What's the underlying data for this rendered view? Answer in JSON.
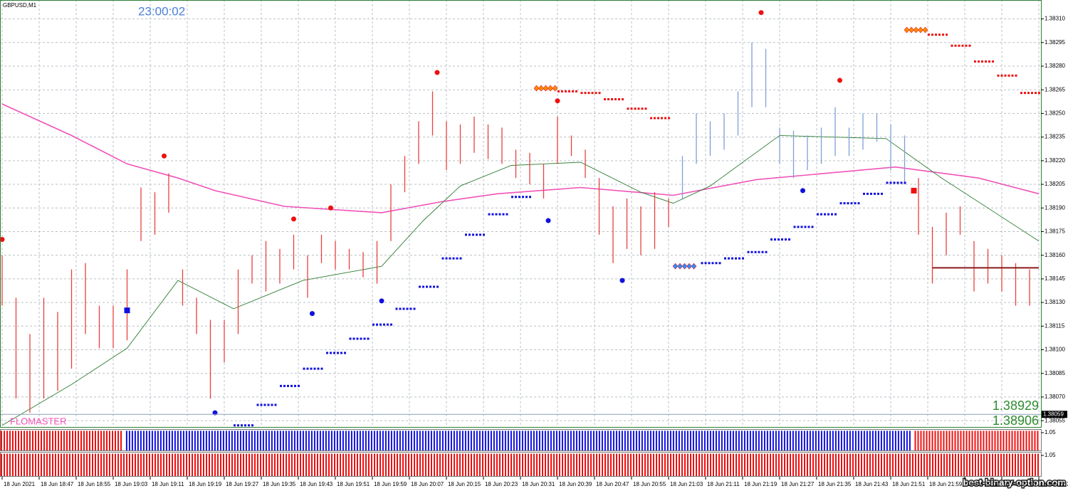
{
  "header": {
    "symbol": "GBPUSD,M1",
    "timer": "23:00:02",
    "indicator_name": "FLOMASTER",
    "price_upper": "1.38929",
    "price_lower": "1.38906",
    "watermark": "best-binary-option.com"
  },
  "chart_data": {
    "type": "bar",
    "xlim": [
      -0.46,
      224.46
    ],
    "ylim": [
      1.38051,
      1.38322
    ],
    "grid": true,
    "xticks": [
      {
        "value": 0,
        "label": "18 Jun 2021"
      },
      {
        "value": 8,
        "label": "18 Jun 18:47"
      },
      {
        "value": 16,
        "label": "18 Jun 18:55"
      },
      {
        "value": 24,
        "label": "18 Jun 19:03"
      },
      {
        "value": 32,
        "label": "18 Jun 19:11"
      },
      {
        "value": 40,
        "label": "18 Jun 19:19"
      },
      {
        "value": 48,
        "label": "18 Jun 19:27"
      },
      {
        "value": 56,
        "label": "18 Jun 19:35"
      },
      {
        "value": 64,
        "label": "18 Jun 19:43"
      },
      {
        "value": 72,
        "label": "18 Jun 19:51"
      },
      {
        "value": 80,
        "label": "18 Jun 19:59"
      },
      {
        "value": 88,
        "label": "18 Jun 20:07"
      },
      {
        "value": 96,
        "label": "18 Jun 20:15"
      },
      {
        "value": 104,
        "label": "18 Jun 20:23"
      },
      {
        "value": 112,
        "label": "18 Jun 20:31"
      },
      {
        "value": 120,
        "label": "18 Jun 20:39"
      },
      {
        "value": 128,
        "label": "18 Jun 20:47"
      },
      {
        "value": 136,
        "label": "18 Jun 20:55"
      },
      {
        "value": 144,
        "label": "18 Jun 21:03"
      },
      {
        "value": 152,
        "label": "18 Jun 21:11"
      },
      {
        "value": 160,
        "label": "18 Jun 21:19"
      },
      {
        "value": 168,
        "label": "18 Jun 21:27"
      },
      {
        "value": 176,
        "label": "18 Jun 21:35"
      },
      {
        "value": 184,
        "label": "18 Jun 21:43"
      },
      {
        "value": 192,
        "label": "18 Jun 21:51"
      },
      {
        "value": 200,
        "label": "18 Jun 21:59"
      },
      {
        "value": 208,
        "label": "18 Jun 22:07"
      },
      {
        "value": 216,
        "label": "18 Jun 22:15"
      },
      {
        "value": 224,
        "label": "18 Jun 22:2"
      }
    ],
    "yticks": [
      {
        "value": 1.3831,
        "label": "1.38310"
      },
      1.38295,
      {
        "value": 1.3828,
        "label": "1.38280"
      },
      1.38265,
      {
        "value": 1.3825,
        "label": "1.38250"
      },
      1.38235,
      {
        "value": 1.3822,
        "label": "1.38220"
      },
      1.38205,
      {
        "value": 1.3819,
        "label": "1.38190"
      },
      1.38175,
      {
        "value": 1.3816,
        "label": "1.38160"
      },
      1.38145,
      {
        "value": 1.3813,
        "label": "1.38130"
      },
      1.38115,
      {
        "value": 1.381,
        "label": "1.38100"
      },
      1.38085,
      {
        "value": 1.3807,
        "label": "1.38070"
      },
      1.38055
    ],
    "current_price": 1.38059,
    "bars": [
      {
        "color": "#e8413f",
        "x": [
          0,
          3,
          6,
          9,
          12,
          15,
          18,
          21,
          24,
          27,
          30,
          33,
          36,
          39,
          42,
          45,
          48,
          51,
          54,
          57,
          60,
          63,
          66,
          69,
          72,
          75,
          78,
          81,
          84,
          87,
          90,
          93,
          96,
          99,
          102,
          105,
          108,
          111,
          114,
          117,
          120,
          123,
          126,
          129,
          132,
          135,
          138,
          141,
          144
        ],
        "high": [
          1.3816,
          1.38133,
          1.3811,
          1.38133,
          1.38124,
          1.38151,
          1.38155,
          1.38128,
          1.38128,
          1.38151,
          1.38203,
          1.382,
          1.38212,
          1.38151,
          1.38133,
          1.38119,
          1.38119,
          1.38151,
          1.3816,
          1.38169,
          1.38164,
          1.38173,
          1.3816,
          1.38173,
          1.38169,
          1.38164,
          1.38162,
          1.38169,
          1.38205,
          1.38223,
          1.38245,
          1.38264,
          1.38245,
          1.38243,
          1.38248,
          1.38243,
          1.38241,
          1.38227,
          1.38225,
          1.38218,
          1.38248,
          1.38236,
          1.38227,
          1.38209,
          1.38191,
          1.38196,
          1.38191,
          1.382,
          1.38196
        ],
        "low": [
          1.38128,
          1.38069,
          1.3806,
          1.38069,
          1.38074,
          1.38088,
          1.3811,
          1.38101,
          1.38101,
          1.38106,
          1.38169,
          1.38173,
          1.38187,
          1.38128,
          1.3811,
          1.38069,
          1.38092,
          1.3811,
          1.38142,
          1.38137,
          1.38142,
          1.38151,
          1.38133,
          1.38155,
          1.38151,
          1.38151,
          1.38146,
          1.38142,
          1.38169,
          1.382,
          1.38218,
          1.38236,
          1.38214,
          1.38218,
          1.38225,
          1.38221,
          1.38218,
          1.38209,
          1.38205,
          1.38196,
          1.38218,
          1.38223,
          1.38209,
          1.38173,
          1.38155,
          1.38164,
          1.3816,
          1.38164,
          1.38178
        ]
      },
      {
        "color": "#7f9fd8",
        "x": [
          147,
          150,
          153,
          156,
          159,
          162,
          165,
          168,
          171,
          174,
          177,
          180,
          183,
          186,
          189,
          192,
          195
        ],
        "high": [
          1.38223,
          1.3825,
          1.38245,
          1.3825,
          1.38264,
          1.38295,
          1.38291,
          1.38241,
          1.38239,
          1.38236,
          1.38241,
          1.38254,
          1.38241,
          1.3825,
          1.3825,
          1.38243,
          1.38236
        ],
        "low": [
          1.38196,
          1.38218,
          1.38223,
          1.38227,
          1.38236,
          1.38254,
          1.38254,
          1.38218,
          1.38209,
          1.38214,
          1.38218,
          1.38223,
          1.38223,
          1.38227,
          1.38232,
          1.38214,
          1.38205
        ]
      },
      {
        "color": "#e8413f",
        "x": [
          198,
          201,
          204,
          207,
          210,
          213,
          216,
          219,
          222
        ],
        "high": [
          1.38209,
          1.38178,
          1.38187,
          1.38191,
          1.38169,
          1.38164,
          1.3816,
          1.38155,
          1.38151
        ],
        "low": [
          1.38173,
          1.38142,
          1.3816,
          1.38173,
          1.38137,
          1.38142,
          1.38137,
          1.38128,
          1.38128
        ]
      }
    ],
    "lines": [
      {
        "color": "#f052b8",
        "x": [
          0,
          15,
          27,
          38,
          46,
          61,
          82,
          95,
          107,
          125,
          145,
          163,
          193,
          211,
          224
        ],
        "values": [
          1.38256,
          1.38236,
          1.38218,
          1.38209,
          1.38201,
          1.38191,
          1.38187,
          1.38194,
          1.38199,
          1.38203,
          1.38198,
          1.38208,
          1.38216,
          1.38209,
          1.38199
        ]
      },
      {
        "color": "#2e7d32",
        "x": [
          0,
          15,
          27,
          38,
          50,
          65,
          82,
          91,
          99,
          110,
          125,
          138,
          145,
          153,
          168,
          191,
          203,
          224
        ],
        "values": [
          1.38052,
          1.38078,
          1.38101,
          1.38144,
          1.38126,
          1.38144,
          1.38153,
          1.38182,
          1.38204,
          1.38217,
          1.38219,
          1.382,
          1.38193,
          1.38204,
          1.38236,
          1.38234,
          1.38209,
          1.38169
        ]
      }
    ],
    "steps": [
      {
        "color": "#1010e0",
        "x": [
          50,
          55,
          60,
          65,
          70,
          75,
          80,
          85,
          90,
          95,
          100,
          105,
          110,
          151,
          156,
          161,
          166,
          171,
          176,
          181,
          186,
          191
        ],
        "values": [
          1.38052,
          1.38065,
          1.38077,
          1.38088,
          1.38098,
          1.38107,
          1.38116,
          1.38126,
          1.3814,
          1.38158,
          1.38173,
          1.38186,
          1.38197,
          1.38155,
          1.38158,
          1.38162,
          1.3817,
          1.38178,
          1.38186,
          1.38193,
          1.38199,
          1.38206
        ]
      },
      {
        "color": "#ee1010",
        "x": [
          120,
          125,
          130,
          135,
          140,
          200,
          205,
          210,
          215,
          220
        ],
        "values": [
          1.38264,
          1.38263,
          1.38259,
          1.38253,
          1.38247,
          1.383,
          1.38293,
          1.38283,
          1.38274,
          1.38263
        ]
      }
    ],
    "diamonds": [
      {
        "color": "#ff8a00",
        "x": [
          115,
          195
        ],
        "values": [
          1.38266,
          1.38303
        ]
      },
      {
        "color": "#2f8cff",
        "x": [
          145
        ],
        "values": [
          1.38153
        ]
      }
    ],
    "dots": [
      {
        "color": "#ee1010",
        "x": [
          0,
          35,
          63,
          71,
          94,
          120,
          164,
          181
        ],
        "values": [
          1.3817,
          1.38223,
          1.38183,
          1.3819,
          1.38276,
          1.38258,
          1.38314,
          1.38271
        ]
      },
      {
        "color": "#1010e0",
        "x": [
          46,
          67,
          82,
          118,
          134,
          173
        ],
        "values": [
          1.3806,
          1.38123,
          1.38131,
          1.38182,
          1.38144,
          1.38201
        ]
      }
    ],
    "squares": [
      {
        "color": "#ee1010",
        "x": [
          197
        ],
        "values": [
          1.38201
        ]
      },
      {
        "color": "#1010e0",
        "x": [
          27
        ],
        "values": [
          1.38125
        ]
      }
    ],
    "level": {
      "color": "#8b1a1a",
      "x": [
        201,
        224
      ],
      "values": [
        1.38152,
        1.38152
      ]
    }
  },
  "subwindows": [
    {
      "ylim": [
        0,
        1.05
      ],
      "yticks": [
        {
          "value": 1.05,
          "label": "1.05"
        }
      ],
      "runs": [
        {
          "color": "#ee1010",
          "x": [
            -0.46,
            26.2
          ],
          "value": 1
        },
        {
          "color": "#1010e0",
          "x": [
            26.6,
            196.6
          ],
          "value": 1
        },
        {
          "color": "#ee1010",
          "x": [
            197,
            224.46
          ],
          "value": 1
        }
      ]
    },
    {
      "ylim": [
        0,
        1.05
      ],
      "yticks": [
        {
          "value": 1.05,
          "label": "1.05"
        }
      ],
      "runs": [
        {
          "color": "#ee1010",
          "x": [
            -0.46,
            224.46
          ],
          "value": 1
        }
      ]
    }
  ]
}
